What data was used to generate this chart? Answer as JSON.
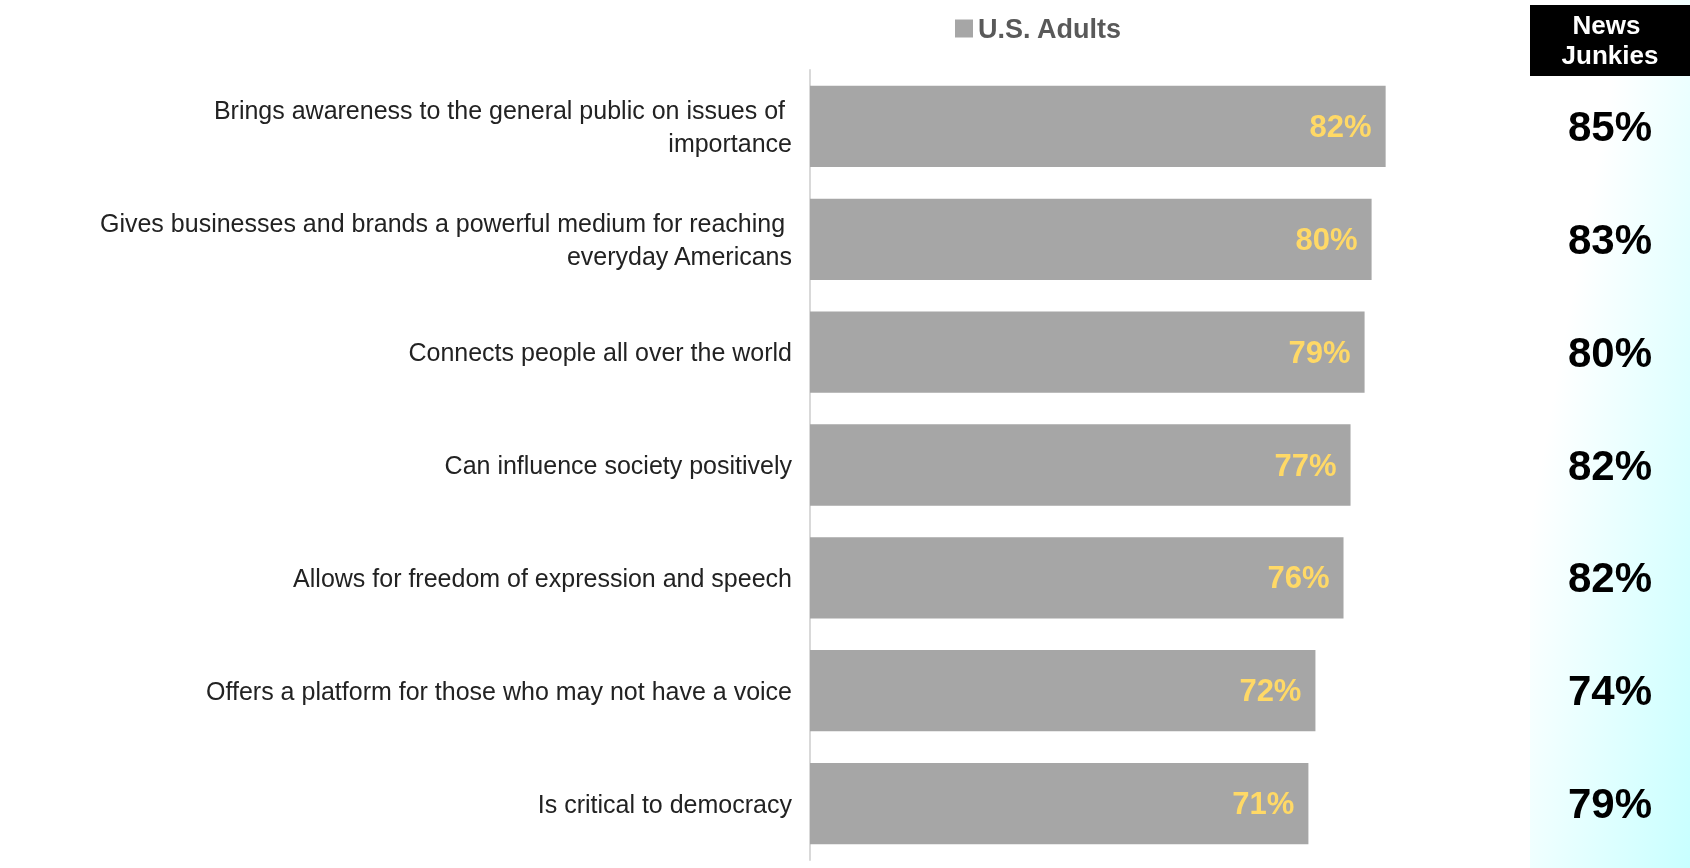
{
  "chart_data": [
    {
      "type": "bar",
      "orientation": "horizontal",
      "categories": [
        "Brings awareness to the general public on issues of importance",
        "Gives businesses and brands a powerful medium for reaching everyday Americans",
        "Connects people all over the world",
        "Can influence society positively",
        "Allows for freedom of expression and speech",
        "Offers a platform for those who may not have a voice",
        "Is critical to democracy"
      ],
      "series": [
        {
          "name": "U.S. Adults",
          "color": "#a6a6a6",
          "values": [
            82,
            80,
            79,
            77,
            76,
            72,
            71
          ],
          "value_labels": [
            "82%",
            "80%",
            "79%",
            "77%",
            "76%",
            "72%",
            "71%"
          ]
        }
      ],
      "tick_labels": "y",
      "legend": "top",
      "grid": false
    },
    {
      "type": "other",
      "title": "News Junkies",
      "annotations": [
        "85%",
        "83%",
        "80%",
        "82%",
        "82%",
        "74%",
        "79%"
      ]
    }
  ]
}
